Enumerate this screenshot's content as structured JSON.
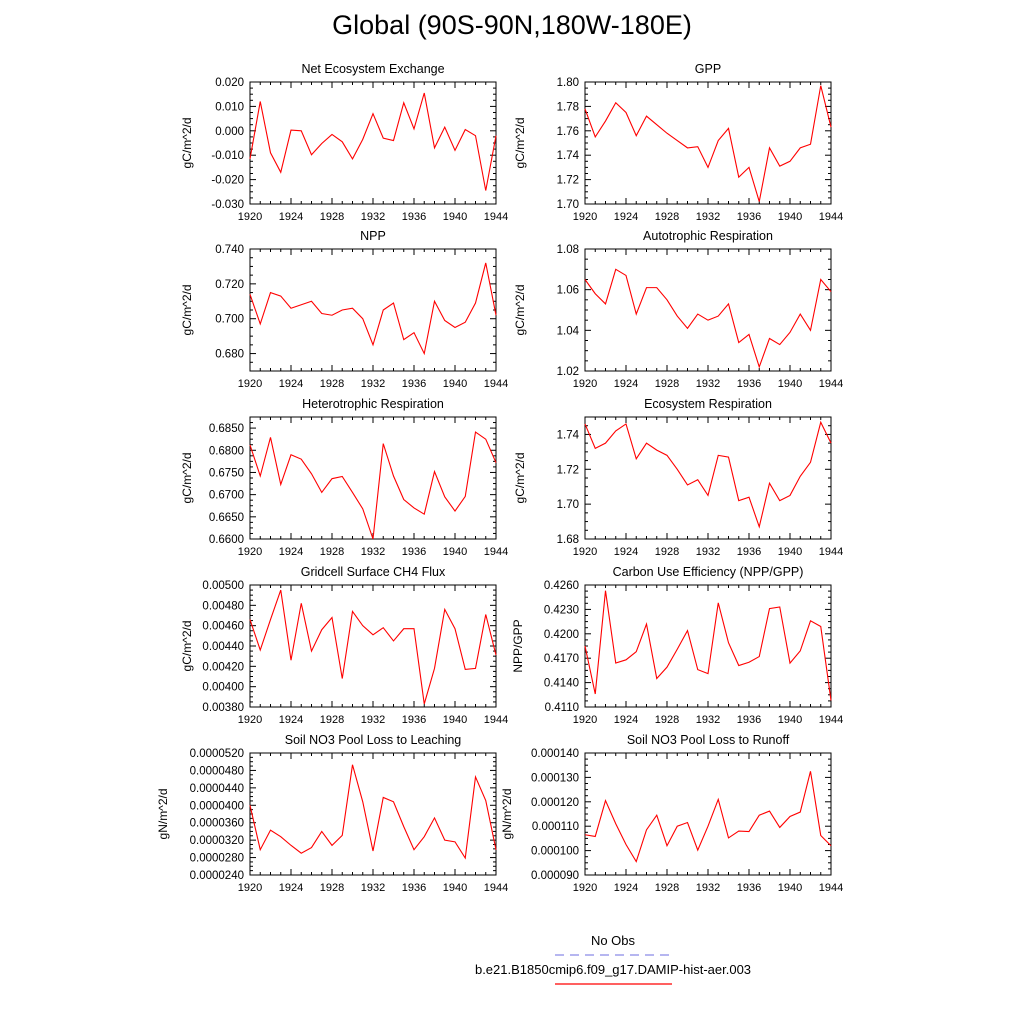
{
  "figure_title": "Global (90S-90N,180W-180E)",
  "colors": {
    "model_line": "#ff0000",
    "obs_line": "#8a8ae6",
    "axis": "#000000"
  },
  "legend": {
    "obs_label": "No Obs",
    "model_label": "b.e21.B1850cmip6.f09_g17.DAMIP-hist-aer.003"
  },
  "chart_data": [
    {
      "type": "line",
      "title": "Net Ecosystem Exchange",
      "ylabel": "gC/m^2/d",
      "xlim": [
        1920,
        1944
      ],
      "ylim": [
        -0.03,
        0.02
      ],
      "xticks": [
        "1920",
        "1924",
        "1928",
        "1932",
        "1936",
        "1940",
        "1944"
      ],
      "yticks": [
        "-0.030",
        "-0.020",
        "-0.010",
        "0.000",
        "0.010",
        "0.020"
      ],
      "x": [
        1920,
        1921,
        1922,
        1923,
        1924,
        1925,
        1926,
        1927,
        1928,
        1929,
        1930,
        1931,
        1932,
        1933,
        1934,
        1935,
        1936,
        1937,
        1938,
        1939,
        1940,
        1941,
        1942,
        1943,
        1944
      ],
      "series": [
        {
          "values": [
            -0.0115,
            0.012,
            -0.009,
            -0.017,
            0.0003,
            0.0,
            -0.0098,
            -0.0052,
            -0.0015,
            -0.0045,
            -0.0115,
            -0.0035,
            0.007,
            -0.003,
            -0.004,
            0.0115,
            0.0008,
            0.0155,
            -0.007,
            0.0015,
            -0.008,
            0.0005,
            -0.002,
            -0.0245,
            -0.002
          ]
        }
      ]
    },
    {
      "type": "line",
      "title": "GPP",
      "ylabel": "gC/m^2/d",
      "xlim": [
        1920,
        1944
      ],
      "ylim": [
        1.7,
        1.8
      ],
      "xticks": [
        "1920",
        "1924",
        "1928",
        "1932",
        "1936",
        "1940",
        "1944"
      ],
      "yticks": [
        "1.70",
        "1.72",
        "1.74",
        "1.76",
        "1.78",
        "1.80"
      ],
      "x": [
        1920,
        1921,
        1922,
        1923,
        1924,
        1925,
        1926,
        1927,
        1928,
        1929,
        1930,
        1931,
        1932,
        1933,
        1934,
        1935,
        1936,
        1937,
        1938,
        1939,
        1940,
        1941,
        1942,
        1943,
        1944
      ],
      "series": [
        {
          "values": [
            1.778,
            1.755,
            1.768,
            1.783,
            1.775,
            1.756,
            1.772,
            1.765,
            1.758,
            1.752,
            1.746,
            1.747,
            1.73,
            1.752,
            1.762,
            1.722,
            1.73,
            1.702,
            1.746,
            1.731,
            1.735,
            1.746,
            1.749,
            1.797,
            1.763
          ]
        }
      ]
    },
    {
      "type": "line",
      "title": "NPP",
      "ylabel": "gC/m^2/d",
      "xlim": [
        1920,
        1944
      ],
      "ylim": [
        0.67,
        0.74
      ],
      "xticks": [
        "1920",
        "1924",
        "1928",
        "1932",
        "1936",
        "1940",
        "1944"
      ],
      "yticks": [
        "0.680",
        "0.700",
        "0.720",
        "0.740"
      ],
      "x": [
        1920,
        1921,
        1922,
        1923,
        1924,
        1925,
        1926,
        1927,
        1928,
        1929,
        1930,
        1931,
        1932,
        1933,
        1934,
        1935,
        1936,
        1937,
        1938,
        1939,
        1940,
        1941,
        1942,
        1943,
        1944
      ],
      "series": [
        {
          "values": [
            0.714,
            0.697,
            0.715,
            0.713,
            0.706,
            0.708,
            0.71,
            0.703,
            0.702,
            0.705,
            0.706,
            0.7,
            0.685,
            0.705,
            0.709,
            0.688,
            0.692,
            0.68,
            0.71,
            0.699,
            0.695,
            0.698,
            0.709,
            0.732,
            0.702
          ]
        }
      ]
    },
    {
      "type": "line",
      "title": "Autotrophic Respiration",
      "ylabel": "gC/m^2/d",
      "xlim": [
        1920,
        1944
      ],
      "ylim": [
        1.02,
        1.08
      ],
      "xticks": [
        "1920",
        "1924",
        "1928",
        "1932",
        "1936",
        "1940",
        "1944"
      ],
      "yticks": [
        "1.02",
        "1.04",
        "1.06",
        "1.08"
      ],
      "x": [
        1920,
        1921,
        1922,
        1923,
        1924,
        1925,
        1926,
        1927,
        1928,
        1929,
        1930,
        1931,
        1932,
        1933,
        1934,
        1935,
        1936,
        1937,
        1938,
        1939,
        1940,
        1941,
        1942,
        1943,
        1944
      ],
      "series": [
        {
          "values": [
            1.065,
            1.058,
            1.053,
            1.07,
            1.067,
            1.048,
            1.061,
            1.061,
            1.055,
            1.047,
            1.041,
            1.048,
            1.045,
            1.047,
            1.053,
            1.034,
            1.038,
            1.022,
            1.036,
            1.033,
            1.039,
            1.048,
            1.04,
            1.065,
            1.059
          ]
        }
      ]
    },
    {
      "type": "line",
      "title": "Heterotrophic Respiration",
      "ylabel": "gC/m^2/d",
      "xlim": [
        1920,
        1944
      ],
      "ylim": [
        0.66,
        0.6875
      ],
      "xticks": [
        "1920",
        "1924",
        "1928",
        "1932",
        "1936",
        "1940",
        "1944"
      ],
      "yticks": [
        "0.6600",
        "0.6650",
        "0.6700",
        "0.6750",
        "0.6800",
        "0.6850"
      ],
      "x": [
        1920,
        1921,
        1922,
        1923,
        1924,
        1925,
        1926,
        1927,
        1928,
        1929,
        1930,
        1931,
        1932,
        1933,
        1934,
        1935,
        1936,
        1937,
        1938,
        1939,
        1940,
        1941,
        1942,
        1943,
        1944
      ],
      "series": [
        {
          "values": [
            0.6812,
            0.6742,
            0.6829,
            0.6723,
            0.679,
            0.678,
            0.6747,
            0.6705,
            0.6736,
            0.6741,
            0.6705,
            0.6668,
            0.66,
            0.6815,
            0.6742,
            0.6689,
            0.667,
            0.6656,
            0.6752,
            0.6695,
            0.6663,
            0.6696,
            0.6841,
            0.6825,
            0.6772
          ]
        }
      ]
    },
    {
      "type": "line",
      "title": "Ecosystem Respiration",
      "ylabel": "gC/m^2/d",
      "xlim": [
        1920,
        1944
      ],
      "ylim": [
        1.68,
        1.75
      ],
      "xticks": [
        "1920",
        "1924",
        "1928",
        "1932",
        "1936",
        "1940",
        "1944"
      ],
      "yticks": [
        "1.68",
        "1.70",
        "1.72",
        "1.74"
      ],
      "x": [
        1920,
        1921,
        1922,
        1923,
        1924,
        1925,
        1926,
        1927,
        1928,
        1929,
        1930,
        1931,
        1932,
        1933,
        1934,
        1935,
        1936,
        1937,
        1938,
        1939,
        1940,
        1941,
        1942,
        1943,
        1944
      ],
      "series": [
        {
          "values": [
            1.746,
            1.732,
            1.735,
            1.742,
            1.746,
            1.726,
            1.735,
            1.731,
            1.728,
            1.72,
            1.711,
            1.714,
            1.705,
            1.728,
            1.727,
            1.702,
            1.704,
            1.687,
            1.712,
            1.702,
            1.705,
            1.716,
            1.724,
            1.747,
            1.735
          ]
        }
      ]
    },
    {
      "type": "line",
      "title": "Gridcell Surface CH4 Flux",
      "ylabel": "gC/m^2/d",
      "xlim": [
        1920,
        1944
      ],
      "ylim": [
        0.0038,
        0.005
      ],
      "xticks": [
        "1920",
        "1924",
        "1928",
        "1932",
        "1936",
        "1940",
        "1944"
      ],
      "yticks": [
        "0.00380",
        "0.00400",
        "0.00420",
        "0.00440",
        "0.00460",
        "0.00480",
        "0.00500"
      ],
      "x": [
        1920,
        1921,
        1922,
        1923,
        1924,
        1925,
        1926,
        1927,
        1928,
        1929,
        1930,
        1931,
        1932,
        1933,
        1934,
        1935,
        1936,
        1937,
        1938,
        1939,
        1940,
        1941,
        1942,
        1943,
        1944
      ],
      "series": [
        {
          "values": [
            0.00466,
            0.00436,
            0.00466,
            0.00495,
            0.00426,
            0.00482,
            0.00435,
            0.00456,
            0.00468,
            0.00408,
            0.00474,
            0.0046,
            0.00451,
            0.00458,
            0.00445,
            0.00457,
            0.00457,
            0.00383,
            0.00418,
            0.00476,
            0.00457,
            0.00417,
            0.00418,
            0.00471,
            0.00431
          ]
        }
      ]
    },
    {
      "type": "line",
      "title": "Carbon Use Efficiency (NPP/GPP)",
      "ylabel": "NPP/GPP",
      "xlim": [
        1920,
        1944
      ],
      "ylim": [
        0.411,
        0.426
      ],
      "xticks": [
        "1920",
        "1924",
        "1928",
        "1932",
        "1936",
        "1940",
        "1944"
      ],
      "yticks": [
        "0.4110",
        "0.4140",
        "0.4170",
        "0.4200",
        "0.4230",
        "0.4260"
      ],
      "x": [
        1920,
        1921,
        1922,
        1923,
        1924,
        1925,
        1926,
        1927,
        1928,
        1929,
        1930,
        1931,
        1932,
        1933,
        1934,
        1935,
        1936,
        1937,
        1938,
        1939,
        1940,
        1941,
        1942,
        1943,
        1944
      ],
      "series": [
        {
          "values": [
            0.4185,
            0.4126,
            0.4253,
            0.4164,
            0.4168,
            0.4178,
            0.4212,
            0.4145,
            0.4159,
            0.4181,
            0.4204,
            0.4156,
            0.4151,
            0.4238,
            0.4189,
            0.4161,
            0.4165,
            0.4172,
            0.4231,
            0.4233,
            0.4164,
            0.4179,
            0.4216,
            0.4209,
            0.4118
          ]
        }
      ]
    },
    {
      "type": "line",
      "title": "Soil NO3 Pool Loss to Leaching",
      "ylabel": "gN/m^2/d",
      "xlim": [
        1920,
        1944
      ],
      "ylim": [
        2.4e-05,
        5.2e-05
      ],
      "xticks": [
        "1920",
        "1924",
        "1928",
        "1932",
        "1936",
        "1940",
        "1944"
      ],
      "yticks": [
        "0.0000240",
        "0.0000280",
        "0.0000320",
        "0.0000360",
        "0.0000400",
        "0.0000440",
        "0.0000480",
        "0.0000520"
      ],
      "x": [
        1920,
        1921,
        1922,
        1923,
        1924,
        1925,
        1926,
        1927,
        1928,
        1929,
        1930,
        1931,
        1932,
        1933,
        1934,
        1935,
        1936,
        1937,
        1938,
        1939,
        1940,
        1941,
        1942,
        1943,
        1944
      ],
      "series": [
        {
          "values": [
            4e-05,
            2.98e-05,
            3.43e-05,
            3.28e-05,
            3.08e-05,
            2.9e-05,
            3.03e-05,
            3.4e-05,
            3.08e-05,
            3.31e-05,
            4.93e-05,
            4.08e-05,
            2.95e-05,
            4.18e-05,
            4.08e-05,
            3.51e-05,
            2.98e-05,
            3.28e-05,
            3.71e-05,
            3.2e-05,
            3.16e-05,
            2.79e-05,
            4.65e-05,
            4.11e-05,
            2.98e-05
          ]
        }
      ]
    },
    {
      "type": "line",
      "title": "Soil NO3 Pool Loss to Runoff",
      "ylabel": "gN/m^2/d",
      "xlim": [
        1920,
        1944
      ],
      "ylim": [
        9e-05,
        0.00014
      ],
      "xticks": [
        "1920",
        "1924",
        "1928",
        "1932",
        "1936",
        "1940",
        "1944"
      ],
      "yticks": [
        "0.000090",
        "0.000100",
        "0.000110",
        "0.000120",
        "0.000130",
        "0.000140"
      ],
      "x": [
        1920,
        1921,
        1922,
        1923,
        1924,
        1925,
        1926,
        1927,
        1928,
        1929,
        1930,
        1931,
        1932,
        1933,
        1934,
        1935,
        1936,
        1937,
        1938,
        1939,
        1940,
        1941,
        1942,
        1943,
        1944
      ],
      "series": [
        {
          "values": [
            0.0001065,
            0.0001058,
            0.0001205,
            0.000111,
            0.0001025,
            9.55e-05,
            0.0001085,
            0.0001145,
            0.000102,
            0.00011,
            0.0001115,
            0.0001002,
            0.00011,
            0.000121,
            0.0001052,
            0.000108,
            0.0001078,
            0.0001145,
            0.0001162,
            0.0001095,
            0.000114,
            0.0001158,
            0.0001325,
            0.0001062,
            0.000102
          ]
        }
      ]
    }
  ]
}
